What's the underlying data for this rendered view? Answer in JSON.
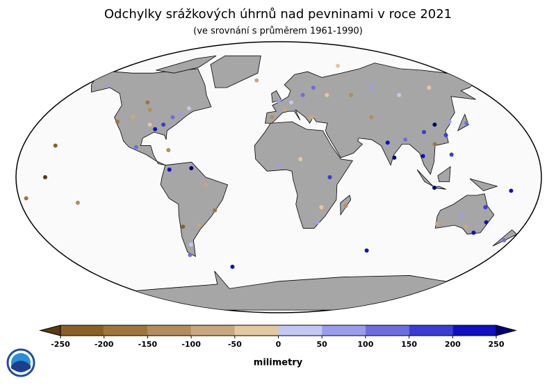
{
  "chart_data": {
    "type": "map",
    "title": "Odchylky srážkových úhrnů nad pevninami v roce 2021",
    "subtitle": "(ve srovnání s průměrem 1961-1990)",
    "colorbar": {
      "label": "milimetry",
      "ticks": [
        -250,
        -200,
        -150,
        -100,
        -50,
        0,
        50,
        100,
        150,
        200,
        250
      ],
      "colors": [
        "#8a6026",
        "#9e763c",
        "#b38d5c",
        "#c8a77c",
        "#e3c8a0",
        "#c4c6f4",
        "#9a9ced",
        "#6c6ee0",
        "#3a3cd4",
        "#1010c0"
      ],
      "under_color": "#5a3a12",
      "over_color": "#00007a"
    },
    "stations": [
      {
        "lon": -100,
        "lat": 45,
        "value": -120
      },
      {
        "lon": -110,
        "lat": 40,
        "value": -90
      },
      {
        "lon": -120,
        "lat": 37,
        "value": -160
      },
      {
        "lon": -95,
        "lat": 35,
        "value": -40
      },
      {
        "lon": -85,
        "lat": 35,
        "value": 180
      },
      {
        "lon": -80,
        "lat": 40,
        "value": 120
      },
      {
        "lon": -75,
        "lat": 42,
        "value": 90
      },
      {
        "lon": -90,
        "lat": 32,
        "value": 220
      },
      {
        "lon": -105,
        "lat": 50,
        "value": -180
      },
      {
        "lon": -70,
        "lat": 46,
        "value": 30
      },
      {
        "lon": -150,
        "lat": 61,
        "value": 60
      },
      {
        "lon": -157,
        "lat": 21,
        "value": -220
      },
      {
        "lon": -160,
        "lat": 0,
        "value": -260
      },
      {
        "lon": -175,
        "lat": -14,
        "value": -200
      },
      {
        "lon": -140,
        "lat": -17,
        "value": -150
      },
      {
        "lon": -100,
        "lat": 20,
        "value": 140
      },
      {
        "lon": -77,
        "lat": 18,
        "value": -130
      },
      {
        "lon": -75,
        "lat": 5,
        "value": 230
      },
      {
        "lon": -60,
        "lat": 6,
        "value": 270
      },
      {
        "lon": -50,
        "lat": -5,
        "value": -60
      },
      {
        "lon": -45,
        "lat": -22,
        "value": -170
      },
      {
        "lon": -58,
        "lat": -32,
        "value": -90
      },
      {
        "lon": -70,
        "lat": -33,
        "value": -230
      },
      {
        "lon": -68,
        "lat": -45,
        "value": 40
      },
      {
        "lon": -72,
        "lat": -52,
        "value": 110
      },
      {
        "lon": -40,
        "lat": -60,
        "value": 200
      },
      {
        "lon": 0,
        "lat": 51,
        "value": 60
      },
      {
        "lon": 10,
        "lat": 50,
        "value": 20
      },
      {
        "lon": 5,
        "lat": 45,
        "value": -70
      },
      {
        "lon": 20,
        "lat": 55,
        "value": 100
      },
      {
        "lon": 30,
        "lat": 60,
        "value": 140
      },
      {
        "lon": -5,
        "lat": 40,
        "value": -140
      },
      {
        "lon": 25,
        "lat": 40,
        "value": -60
      },
      {
        "lon": 40,
        "lat": 55,
        "value": -30
      },
      {
        "lon": 60,
        "lat": 55,
        "value": -110
      },
      {
        "lon": 80,
        "lat": 60,
        "value": 70
      },
      {
        "lon": 100,
        "lat": 55,
        "value": 20
      },
      {
        "lon": 130,
        "lat": 60,
        "value": -40
      },
      {
        "lon": 70,
        "lat": 40,
        "value": -150
      },
      {
        "lon": 77,
        "lat": 23,
        "value": 210
      },
      {
        "lon": 80,
        "lat": 13,
        "value": 260
      },
      {
        "lon": 90,
        "lat": 25,
        "value": 130
      },
      {
        "lon": 105,
        "lat": 30,
        "value": 190
      },
      {
        "lon": 115,
        "lat": 35,
        "value": 280
      },
      {
        "lon": 120,
        "lat": 28,
        "value": 160
      },
      {
        "lon": 110,
        "lat": 22,
        "value": -180
      },
      {
        "lon": 127,
        "lat": 37,
        "value": 90
      },
      {
        "lon": 139,
        "lat": 36,
        "value": 120
      },
      {
        "lon": 100,
        "lat": 14,
        "value": 230
      },
      {
        "lon": 120,
        "lat": 15,
        "value": 170
      },
      {
        "lon": 107,
        "lat": -7,
        "value": 250
      },
      {
        "lon": 160,
        "lat": -9,
        "value": 240
      },
      {
        "lon": 0,
        "lat": 8,
        "value": 80
      },
      {
        "lon": 15,
        "lat": 12,
        "value": -50
      },
      {
        "lon": 35,
        "lat": 0,
        "value": 150
      },
      {
        "lon": 30,
        "lat": -20,
        "value": -30
      },
      {
        "lon": 47,
        "lat": -19,
        "value": -140
      },
      {
        "lon": 28,
        "lat": -30,
        "value": 60
      },
      {
        "lon": 115,
        "lat": -31,
        "value": -60
      },
      {
        "lon": 130,
        "lat": -25,
        "value": 80
      },
      {
        "lon": 145,
        "lat": -20,
        "value": 180
      },
      {
        "lon": 150,
        "lat": -30,
        "value": 240
      },
      {
        "lon": 145,
        "lat": -37,
        "value": 210
      },
      {
        "lon": 137,
        "lat": -33,
        "value": -90
      },
      {
        "lon": 172,
        "lat": -42,
        "value": 120
      },
      {
        "lon": 70,
        "lat": -49,
        "value": 200
      },
      {
        "lon": -20,
        "lat": 65,
        "value": -80
      },
      {
        "lon": 60,
        "lat": 75,
        "value": -20
      }
    ]
  }
}
